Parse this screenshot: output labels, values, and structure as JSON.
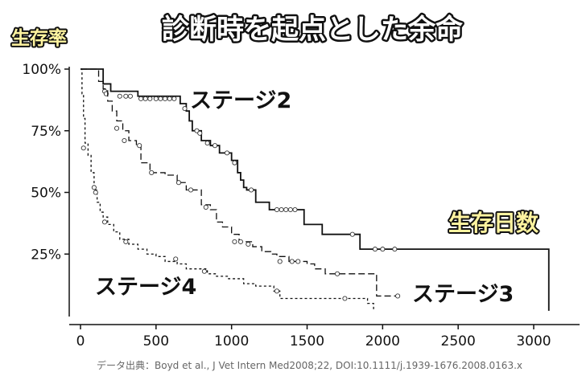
{
  "chart_data": {
    "type": "line",
    "subtype": "kaplan-meier-step",
    "title": "診断時を起点とした余命",
    "ylabel": "生存率",
    "xlabel": "生存日数",
    "xlim": [
      -60,
      3200
    ],
    "ylim": [
      0,
      105
    ],
    "x_ticks": [
      0,
      500,
      1000,
      1500,
      2000,
      2500,
      3000
    ],
    "y_ticks": [
      25,
      50,
      75,
      100
    ],
    "y_tick_labels": [
      "25%",
      "50%",
      "75%",
      "100%"
    ],
    "grid": false,
    "legend": "none",
    "series": [
      {
        "name": "ステージ2",
        "style": "solid",
        "color": "#111111",
        "points": [
          [
            0,
            100
          ],
          [
            120,
            100
          ],
          [
            150,
            94
          ],
          [
            200,
            91
          ],
          [
            380,
            89
          ],
          [
            650,
            89
          ],
          [
            660,
            86
          ],
          [
            700,
            83
          ],
          [
            720,
            79
          ],
          [
            740,
            75
          ],
          [
            800,
            71
          ],
          [
            860,
            69
          ],
          [
            920,
            66
          ],
          [
            1000,
            63
          ],
          [
            1040,
            58
          ],
          [
            1060,
            55
          ],
          [
            1080,
            52
          ],
          [
            1100,
            51
          ],
          [
            1160,
            46
          ],
          [
            1250,
            43
          ],
          [
            1400,
            43
          ],
          [
            1480,
            37
          ],
          [
            1600,
            33
          ],
          [
            1780,
            33
          ],
          [
            1850,
            27
          ],
          [
            3100,
            27
          ],
          [
            3100,
            2
          ]
        ],
        "censored": [
          [
            160,
            91
          ],
          [
            170,
            90
          ],
          [
            260,
            89
          ],
          [
            300,
            89
          ],
          [
            330,
            89
          ],
          [
            400,
            88
          ],
          [
            430,
            88
          ],
          [
            460,
            88
          ],
          [
            500,
            88
          ],
          [
            530,
            88
          ],
          [
            560,
            88
          ],
          [
            590,
            88
          ],
          [
            620,
            88
          ],
          [
            690,
            84
          ],
          [
            770,
            75
          ],
          [
            790,
            74
          ],
          [
            840,
            70
          ],
          [
            890,
            69
          ],
          [
            970,
            66
          ],
          [
            1020,
            62
          ],
          [
            1130,
            51
          ],
          [
            1300,
            43
          ],
          [
            1330,
            43
          ],
          [
            1360,
            43
          ],
          [
            1390,
            43
          ],
          [
            1420,
            43
          ],
          [
            1800,
            33
          ],
          [
            1950,
            27
          ],
          [
            2000,
            27
          ],
          [
            2080,
            27
          ]
        ]
      },
      {
        "name": "ステージ3",
        "style": "dashed",
        "color": "#111111",
        "points": [
          [
            0,
            100
          ],
          [
            100,
            100
          ],
          [
            120,
            95
          ],
          [
            150,
            92
          ],
          [
            180,
            87
          ],
          [
            210,
            83
          ],
          [
            240,
            79
          ],
          [
            280,
            75
          ],
          [
            320,
            71
          ],
          [
            370,
            69
          ],
          [
            400,
            62
          ],
          [
            460,
            58
          ],
          [
            560,
            57
          ],
          [
            640,
            54
          ],
          [
            700,
            51
          ],
          [
            760,
            51
          ],
          [
            800,
            45
          ],
          [
            860,
            43
          ],
          [
            900,
            38
          ],
          [
            940,
            36
          ],
          [
            1000,
            33
          ],
          [
            1050,
            30
          ],
          [
            1100,
            30
          ],
          [
            1140,
            28
          ],
          [
            1200,
            26
          ],
          [
            1260,
            25
          ],
          [
            1300,
            24
          ],
          [
            1380,
            22
          ],
          [
            1500,
            21
          ],
          [
            1550,
            19
          ],
          [
            1620,
            17
          ],
          [
            1960,
            17
          ],
          [
            1960,
            8
          ],
          [
            2100,
            8
          ]
        ],
        "censored": [
          [
            240,
            76
          ],
          [
            290,
            71
          ],
          [
            390,
            69
          ],
          [
            470,
            58
          ],
          [
            650,
            54
          ],
          [
            730,
            51
          ],
          [
            830,
            44
          ],
          [
            1020,
            30
          ],
          [
            1060,
            30
          ],
          [
            1110,
            29
          ],
          [
            1320,
            22
          ],
          [
            1400,
            22
          ],
          [
            1440,
            22
          ],
          [
            1700,
            17
          ],
          [
            2100,
            8
          ]
        ]
      },
      {
        "name": "ステージ4",
        "style": "dotted",
        "color": "#111111",
        "points": [
          [
            0,
            100
          ],
          [
            10,
            90
          ],
          [
            20,
            80
          ],
          [
            30,
            70
          ],
          [
            50,
            65
          ],
          [
            70,
            58
          ],
          [
            90,
            51
          ],
          [
            110,
            46
          ],
          [
            130,
            42
          ],
          [
            150,
            40
          ],
          [
            180,
            37
          ],
          [
            220,
            34
          ],
          [
            260,
            31
          ],
          [
            320,
            29
          ],
          [
            380,
            27
          ],
          [
            440,
            25
          ],
          [
            500,
            24
          ],
          [
            560,
            22
          ],
          [
            640,
            21
          ],
          [
            700,
            19
          ],
          [
            780,
            19
          ],
          [
            840,
            17
          ],
          [
            900,
            16
          ],
          [
            980,
            15
          ],
          [
            1080,
            13
          ],
          [
            1160,
            12
          ],
          [
            1280,
            10
          ],
          [
            1320,
            7
          ],
          [
            1900,
            7
          ],
          [
            1900,
            5
          ],
          [
            1940,
            5
          ],
          [
            1940,
            2
          ]
        ],
        "censored": [
          [
            20,
            68
          ],
          [
            90,
            52
          ],
          [
            100,
            50
          ],
          [
            160,
            38
          ],
          [
            300,
            30
          ],
          [
            630,
            23
          ],
          [
            820,
            18
          ],
          [
            1300,
            10
          ],
          [
            1750,
            7
          ]
        ]
      }
    ],
    "annotations": [
      {
        "text": "ステージ2",
        "series": "ステージ2"
      },
      {
        "text": "ステージ3",
        "series": "ステージ3"
      },
      {
        "text": "ステージ4",
        "series": "ステージ4"
      }
    ],
    "source": "データ出典：Boyd et al., J Vet Intern Med2008;22, DOI:10.1111/j.1939-1676.2008.0163.x"
  }
}
